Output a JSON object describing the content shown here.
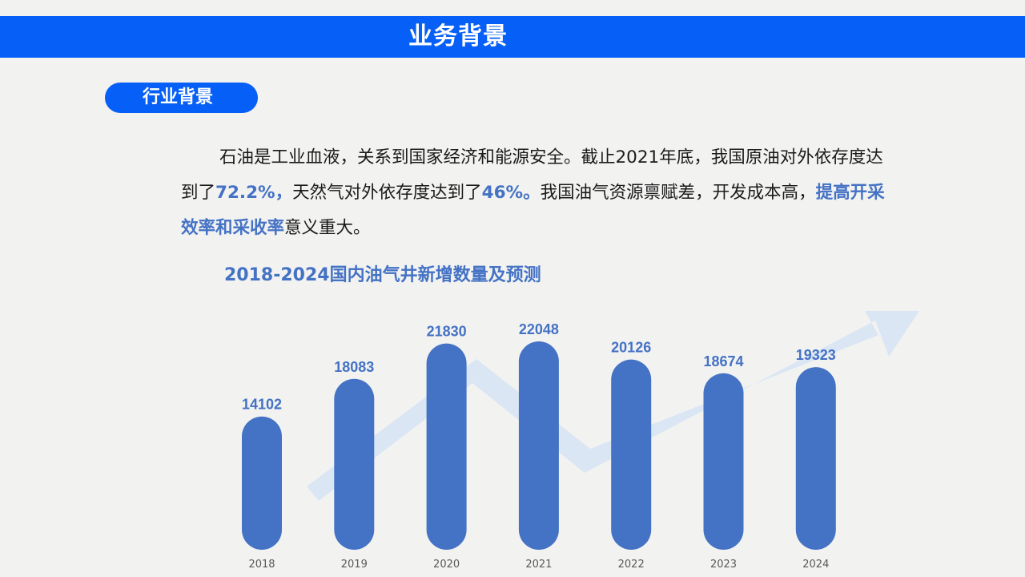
{
  "header": {
    "title": "业务背景"
  },
  "section": {
    "label": "行业背景"
  },
  "paragraph": {
    "p1": "石油是工业血液，关系到国家经济和能源安全。截止2021年底，我国原油对外依存度达到了",
    "h1": "72.2%，",
    "p2": "天然气对外依存度达到了",
    "h2": "46%。",
    "p3": "我国油气资源禀赋差，开发成本高，",
    "h3": "提高开采效率和采收率",
    "p4": "意义重大。"
  },
  "colors": {
    "accent": "#065ff6",
    "bar": "#4472c4",
    "arrow": "#dbe6f4",
    "background": "#f2f2f1"
  },
  "chart_data": {
    "type": "bar",
    "title": "2018-2024国内油气井新增数量及预测",
    "categories": [
      "2018",
      "2019",
      "2020",
      "2021",
      "2022",
      "2023",
      "2024"
    ],
    "values": [
      14102,
      18083,
      21830,
      22048,
      20126,
      18674,
      19323
    ],
    "xlabel": "",
    "ylabel": "",
    "ylim": [
      0,
      24000
    ],
    "grid": false,
    "legend": "none",
    "bar_shape": "rounded-pill",
    "data_labels": true,
    "decoration": "background upward trend arrow"
  }
}
